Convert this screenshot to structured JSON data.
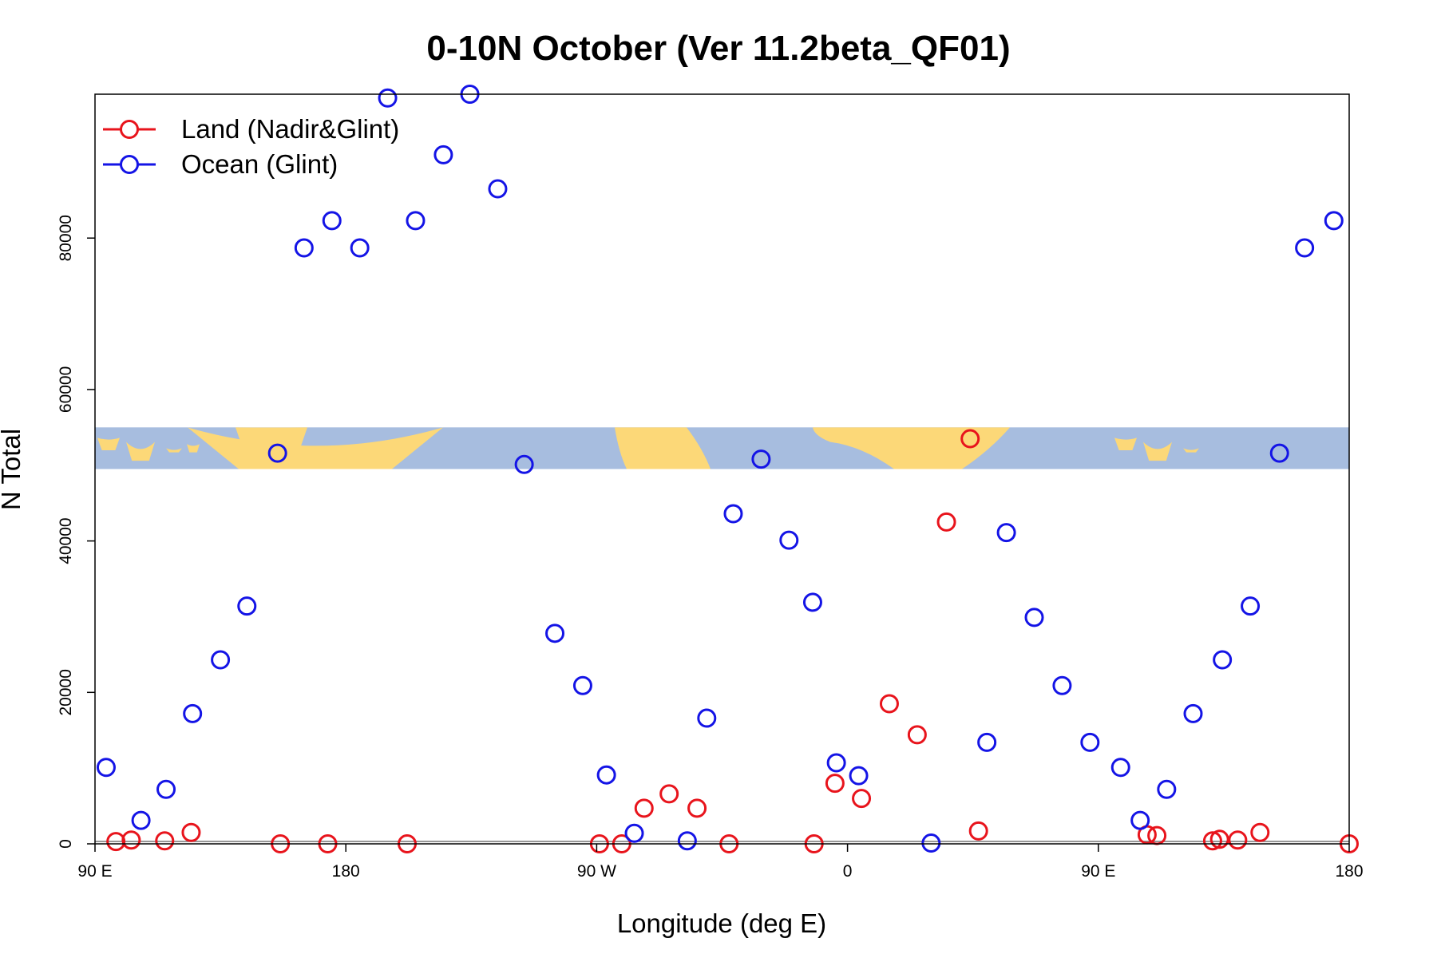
{
  "chart_data": {
    "type": "scatter",
    "title": "0-10N October (Ver 11.2beta_QF01)",
    "xlabel": "Longitude (deg E)",
    "ylabel": "N Total",
    "xlim": [
      90,
      540
    ],
    "ylim": [
      0,
      99000
    ],
    "x_ticks": [
      {
        "value": 90,
        "label": "90 E"
      },
      {
        "value": 180,
        "label": "180"
      },
      {
        "value": 270,
        "label": "90 W"
      },
      {
        "value": 360,
        "label": "0"
      },
      {
        "value": 450,
        "label": "90 E"
      },
      {
        "value": 540,
        "label": "180"
      }
    ],
    "y_ticks": [
      {
        "value": 0,
        "label": "0"
      },
      {
        "value": 20000,
        "label": "20000"
      },
      {
        "value": 40000,
        "label": "40000"
      },
      {
        "value": 60000,
        "label": "60000"
      },
      {
        "value": 80000,
        "label": "80000"
      }
    ],
    "legend_position": "top-left",
    "grid": false,
    "map_strip": {
      "y_range": [
        49500,
        55000
      ],
      "ocean_color": "#a7bddf",
      "land_color": "#fcd878"
    },
    "series": [
      {
        "name": "Land (Nadir&Glint)",
        "color": "#e8141c",
        "points": [
          {
            "x": 97.5,
            "y": 300
          },
          {
            "x": 103,
            "y": 500
          },
          {
            "x": 115,
            "y": 400
          },
          {
            "x": 124.5,
            "y": 1500
          },
          {
            "x": 156.5,
            "y": 0
          },
          {
            "x": 173.5,
            "y": 0
          },
          {
            "x": 202,
            "y": 0
          },
          {
            "x": 271,
            "y": 0
          },
          {
            "x": 279,
            "y": 0
          },
          {
            "x": 287,
            "y": 4700
          },
          {
            "x": 296,
            "y": 6600
          },
          {
            "x": 306,
            "y": 4700
          },
          {
            "x": 317.5,
            "y": 0
          },
          {
            "x": 348,
            "y": 0
          },
          {
            "x": 355.5,
            "y": 8000
          },
          {
            "x": 365,
            "y": 6000
          },
          {
            "x": 375,
            "y": 18500
          },
          {
            "x": 385,
            "y": 14400
          },
          {
            "x": 395.5,
            "y": 42500
          },
          {
            "x": 404,
            "y": 53500
          },
          {
            "x": 407,
            "y": 1700
          },
          {
            "x": 467.5,
            "y": 1200
          },
          {
            "x": 471,
            "y": 1100
          },
          {
            "x": 491,
            "y": 400
          },
          {
            "x": 493.5,
            "y": 600
          },
          {
            "x": 500,
            "y": 500
          },
          {
            "x": 508,
            "y": 1500
          },
          {
            "x": 540,
            "y": 0
          }
        ]
      },
      {
        "name": "Ocean (Glint)",
        "color": "#1414e6",
        "points": [
          {
            "x": 94,
            "y": 10100
          },
          {
            "x": 106.5,
            "y": 3100
          },
          {
            "x": 115.5,
            "y": 7200
          },
          {
            "x": 125,
            "y": 17200
          },
          {
            "x": 135,
            "y": 24300
          },
          {
            "x": 144.5,
            "y": 31400
          },
          {
            "x": 155.5,
            "y": 51600
          },
          {
            "x": 165,
            "y": 78700
          },
          {
            "x": 175,
            "y": 82300
          },
          {
            "x": 185,
            "y": 78700
          },
          {
            "x": 195,
            "y": 98500
          },
          {
            "x": 205,
            "y": 82300
          },
          {
            "x": 215,
            "y": 91000
          },
          {
            "x": 224.5,
            "y": 99300
          },
          {
            "x": 234.5,
            "y": 86500
          },
          {
            "x": 244,
            "y": 50100
          },
          {
            "x": 255,
            "y": 27800
          },
          {
            "x": 265,
            "y": 20900
          },
          {
            "x": 273.5,
            "y": 9100
          },
          {
            "x": 283.5,
            "y": 1400
          },
          {
            "x": 302.5,
            "y": 400
          },
          {
            "x": 309.5,
            "y": 16600
          },
          {
            "x": 319,
            "y": 43600
          },
          {
            "x": 329,
            "y": 50800
          },
          {
            "x": 339,
            "y": 40100
          },
          {
            "x": 347.5,
            "y": 31900
          },
          {
            "x": 356,
            "y": 10700
          },
          {
            "x": 364,
            "y": 9000
          },
          {
            "x": 390,
            "y": 100
          },
          {
            "x": 410,
            "y": 13400
          },
          {
            "x": 417,
            "y": 41100
          },
          {
            "x": 427,
            "y": 29900
          },
          {
            "x": 437,
            "y": 20900
          },
          {
            "x": 447,
            "y": 13400
          },
          {
            "x": 458,
            "y": 10100
          },
          {
            "x": 465,
            "y": 3100
          },
          {
            "x": 474.5,
            "y": 7200
          },
          {
            "x": 484,
            "y": 17200
          },
          {
            "x": 494.5,
            "y": 24300
          },
          {
            "x": 504.5,
            "y": 31400
          },
          {
            "x": 515,
            "y": 51600
          },
          {
            "x": 524,
            "y": 78700
          },
          {
            "x": 534.5,
            "y": 82300
          }
        ]
      }
    ]
  }
}
